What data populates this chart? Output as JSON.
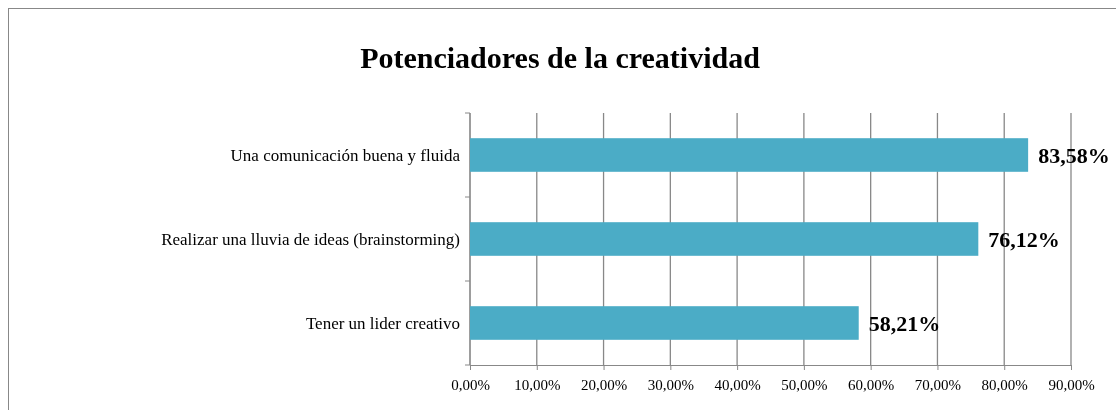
{
  "chart_data": {
    "type": "bar",
    "orientation": "horizontal",
    "title": "Potenciadores de la creatividad",
    "categories": [
      "Una comunicación buena y fluida",
      "Realizar una lluvia de ideas (brainstorming)",
      "Tener un lider creativo"
    ],
    "values": [
      83.58,
      76.12,
      58.21
    ],
    "color": "#4bacc6",
    "value_labels": [
      "83,58%",
      "76,12%",
      "58,21%"
    ],
    "xlim": [
      0,
      90
    ],
    "xticks": [
      {
        "value": 0,
        "label": "0,00%"
      },
      {
        "value": 10,
        "label": "10,00%"
      },
      {
        "value": 20,
        "label": "20,00%"
      },
      {
        "value": 30,
        "label": "30,00%"
      },
      {
        "value": 40,
        "label": "40,00%"
      },
      {
        "value": 50,
        "label": "50,00%"
      },
      {
        "value": 60,
        "label": "60,00%"
      },
      {
        "value": 70,
        "label": "70,00%"
      },
      {
        "value": 80,
        "label": "80,00%"
      },
      {
        "value": 90,
        "label": "90,00%"
      }
    ],
    "grid": "x"
  }
}
